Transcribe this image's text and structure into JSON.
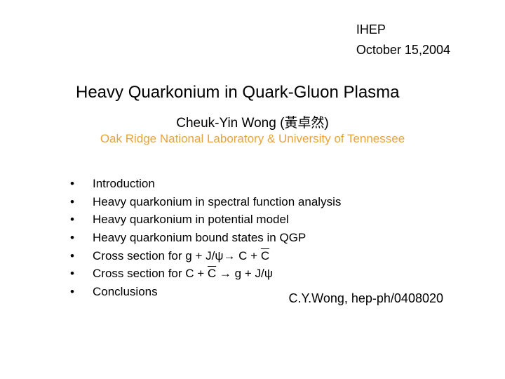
{
  "header": {
    "institute": "IHEP",
    "date": "October 15,2004"
  },
  "title": "Heavy Quarkonium in Quark-Gluon Plasma",
  "author": "Cheuk-Yin Wong (黃卓然)",
  "affiliation": "Oak Ridge National Laboratory &  University of Tennessee",
  "bullets": [
    {
      "text": "Introduction"
    },
    {
      "text": "Heavy quarkonium in spectral function analysis"
    },
    {
      "text": "Heavy quarkonium in potential model"
    },
    {
      "text": "Heavy quarkonium bound states in QGP"
    },
    {
      "pre": "Cross section for g + J/ψ",
      "arrow": "→",
      "post_a": " C + ",
      "post_b": "C"
    },
    {
      "pre": "Cross section for C + ",
      "mid_over": "C",
      "arrow": " → ",
      "post": "g + J/ψ"
    },
    {
      "text": "Conclusions"
    }
  ],
  "reference": "C.Y.Wong, hep-ph/0408020",
  "colors": {
    "text": "#000000",
    "affiliation": "#e8a33d",
    "background": "#ffffff"
  },
  "typography": {
    "title_fontsize": 24,
    "author_fontsize": 19,
    "affiliation_fontsize": 17,
    "body_fontsize": 17,
    "header_fontsize": 18
  }
}
